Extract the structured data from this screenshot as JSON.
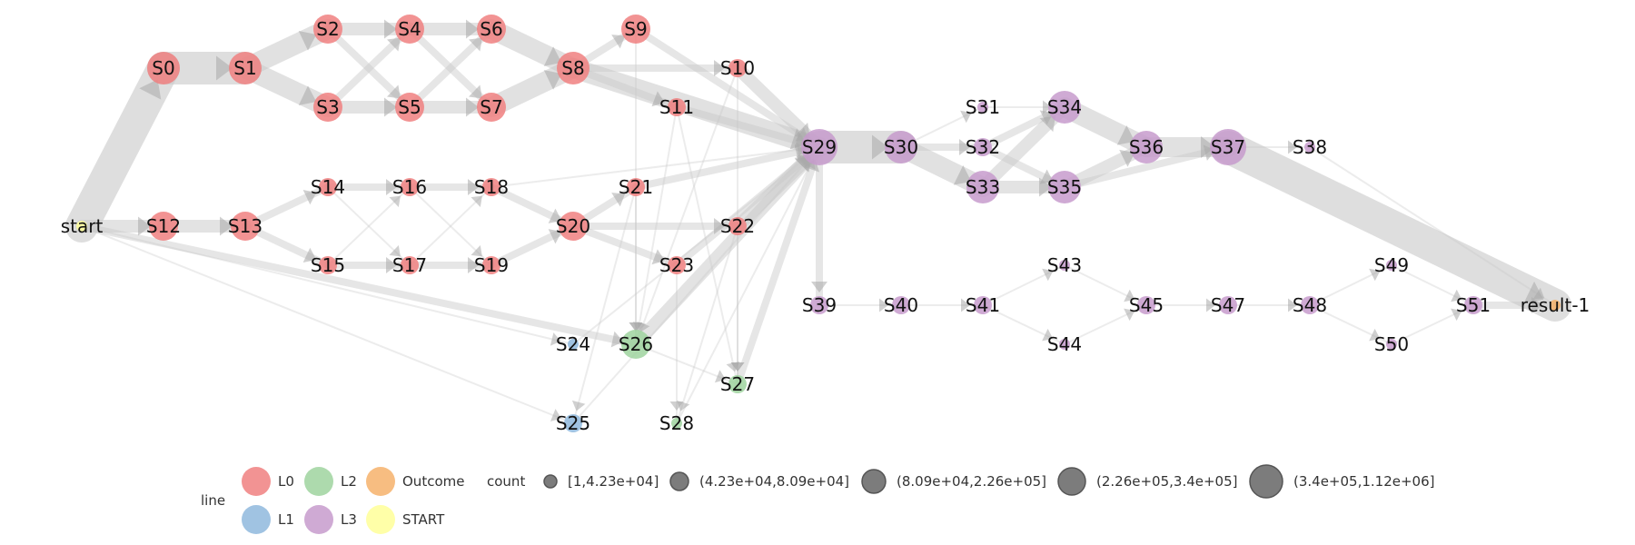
{
  "colors": {
    "L0": "#f08080",
    "L1": "#8fb8dd",
    "L2": "#9fd39f",
    "L3": "#c79bcc",
    "Outcome": "#f6b26b",
    "START": "#ffff99",
    "edge": "#c8c8c8",
    "arrow": "#a9a9a9"
  },
  "nodes": [
    {
      "id": "S0",
      "group": "L0",
      "size": 4
    },
    {
      "id": "S1",
      "group": "L0",
      "size": 4
    },
    {
      "id": "S2",
      "group": "L0",
      "size": 3
    },
    {
      "id": "S3",
      "group": "L0",
      "size": 3
    },
    {
      "id": "S4",
      "group": "L0",
      "size": 3
    },
    {
      "id": "S5",
      "group": "L0",
      "size": 3
    },
    {
      "id": "S6",
      "group": "L0",
      "size": 3
    },
    {
      "id": "S7",
      "group": "L0",
      "size": 3
    },
    {
      "id": "S8",
      "group": "L0",
      "size": 4
    },
    {
      "id": "S9",
      "group": "L0",
      "size": 3
    },
    {
      "id": "S10",
      "group": "L0",
      "size": 2
    },
    {
      "id": "S11",
      "group": "L0",
      "size": 2
    },
    {
      "id": "S12",
      "group": "L0",
      "size": 3
    },
    {
      "id": "S13",
      "group": "L0",
      "size": 3
    },
    {
      "id": "S14",
      "group": "L0",
      "size": 2
    },
    {
      "id": "S15",
      "group": "L0",
      "size": 2
    },
    {
      "id": "S16",
      "group": "L0",
      "size": 2
    },
    {
      "id": "S17",
      "group": "L0",
      "size": 2
    },
    {
      "id": "S18",
      "group": "L0",
      "size": 2
    },
    {
      "id": "S19",
      "group": "L0",
      "size": 2
    },
    {
      "id": "S20",
      "group": "L0",
      "size": 3
    },
    {
      "id": "S21",
      "group": "L0",
      "size": 2
    },
    {
      "id": "S22",
      "group": "L0",
      "size": 2
    },
    {
      "id": "S23",
      "group": "L0",
      "size": 2
    },
    {
      "id": "S24",
      "group": "L1",
      "size": 1
    },
    {
      "id": "S25",
      "group": "L1",
      "size": 2
    },
    {
      "id": "S26",
      "group": "L2",
      "size": 3
    },
    {
      "id": "S27",
      "group": "L2",
      "size": 2
    },
    {
      "id": "S28",
      "group": "L2",
      "size": 1
    },
    {
      "id": "S29",
      "group": "L3",
      "size": 5
    },
    {
      "id": "S30",
      "group": "L3",
      "size": 4
    },
    {
      "id": "S31",
      "group": "L3",
      "size": 1
    },
    {
      "id": "S32",
      "group": "L3",
      "size": 2
    },
    {
      "id": "S33",
      "group": "L3",
      "size": 4
    },
    {
      "id": "S34",
      "group": "L3",
      "size": 4
    },
    {
      "id": "S35",
      "group": "L3",
      "size": 4
    },
    {
      "id": "S36",
      "group": "L3",
      "size": 4
    },
    {
      "id": "S37",
      "group": "L3",
      "size": 5
    },
    {
      "id": "S38",
      "group": "L3",
      "size": 1
    },
    {
      "id": "S39",
      "group": "L3",
      "size": 2
    },
    {
      "id": "S40",
      "group": "L3",
      "size": 2
    },
    {
      "id": "S41",
      "group": "L3",
      "size": 2
    },
    {
      "id": "S43",
      "group": "L3",
      "size": 1
    },
    {
      "id": "S44",
      "group": "L3",
      "size": 1
    },
    {
      "id": "S45",
      "group": "L3",
      "size": 2
    },
    {
      "id": "S47",
      "group": "L3",
      "size": 2
    },
    {
      "id": "S48",
      "group": "L3",
      "size": 2
    },
    {
      "id": "S49",
      "group": "L3",
      "size": 1
    },
    {
      "id": "S50",
      "group": "L3",
      "size": 1
    },
    {
      "id": "S51",
      "group": "L3",
      "size": 2
    },
    {
      "id": "start",
      "group": "START",
      "size": 1
    },
    {
      "id": "result-1",
      "group": "Outcome",
      "size": 1
    }
  ],
  "edges": [
    [
      "start",
      "S0",
      5
    ],
    [
      "S0",
      "S1",
      5
    ],
    [
      "S1",
      "S2",
      4
    ],
    [
      "S1",
      "S3",
      4
    ],
    [
      "S2",
      "S4",
      3
    ],
    [
      "S2",
      "S5",
      2
    ],
    [
      "S3",
      "S4",
      2
    ],
    [
      "S3",
      "S5",
      3
    ],
    [
      "S4",
      "S6",
      3
    ],
    [
      "S4",
      "S7",
      2
    ],
    [
      "S5",
      "S6",
      2
    ],
    [
      "S5",
      "S7",
      3
    ],
    [
      "S6",
      "S8",
      4
    ],
    [
      "S7",
      "S8",
      4
    ],
    [
      "S8",
      "S9",
      2
    ],
    [
      "S8",
      "S10",
      2
    ],
    [
      "S8",
      "S11",
      2
    ],
    [
      "S8",
      "S29",
      4
    ],
    [
      "S9",
      "S29",
      2
    ],
    [
      "S10",
      "S29",
      3
    ],
    [
      "S11",
      "S29",
      2
    ],
    [
      "start",
      "S12",
      3
    ],
    [
      "S12",
      "S13",
      3
    ],
    [
      "S13",
      "S14",
      2
    ],
    [
      "S13",
      "S15",
      2
    ],
    [
      "S14",
      "S16",
      2
    ],
    [
      "S14",
      "S17",
      1
    ],
    [
      "S15",
      "S16",
      1
    ],
    [
      "S15",
      "S17",
      2
    ],
    [
      "S16",
      "S18",
      2
    ],
    [
      "S16",
      "S19",
      1
    ],
    [
      "S17",
      "S18",
      1
    ],
    [
      "S17",
      "S19",
      2
    ],
    [
      "S18",
      "S20",
      2
    ],
    [
      "S19",
      "S20",
      2
    ],
    [
      "S20",
      "S21",
      2
    ],
    [
      "S20",
      "S22",
      2
    ],
    [
      "S20",
      "S23",
      2
    ],
    [
      "S21",
      "S29",
      2
    ],
    [
      "S22",
      "S29",
      3
    ],
    [
      "S23",
      "S29",
      2
    ],
    [
      "S18",
      "S29",
      1
    ],
    [
      "start",
      "S24",
      1
    ],
    [
      "start",
      "S25",
      1
    ],
    [
      "start",
      "S26",
      2
    ],
    [
      "S26",
      "S29",
      3
    ],
    [
      "S26",
      "S27",
      1
    ],
    [
      "S24",
      "S29",
      1
    ],
    [
      "S27",
      "S29",
      2
    ],
    [
      "S28",
      "S29",
      1
    ],
    [
      "S25",
      "S29",
      1
    ],
    [
      "S9",
      "S26",
      1
    ],
    [
      "S10",
      "S27",
      1
    ],
    [
      "S11",
      "S26",
      1
    ],
    [
      "S21",
      "S26",
      1
    ],
    [
      "S22",
      "S27",
      1
    ],
    [
      "S23",
      "S28",
      1
    ],
    [
      "S11",
      "S27",
      1
    ],
    [
      "S10",
      "S26",
      1
    ],
    [
      "S21",
      "S25",
      1
    ],
    [
      "S22",
      "S28",
      1
    ],
    [
      "S29",
      "S30",
      5
    ],
    [
      "S30",
      "S31",
      1
    ],
    [
      "S30",
      "S32",
      2
    ],
    [
      "S30",
      "S33",
      4
    ],
    [
      "S31",
      "S34",
      1
    ],
    [
      "S32",
      "S34",
      2
    ],
    [
      "S32",
      "S35",
      2
    ],
    [
      "S33",
      "S34",
      3
    ],
    [
      "S33",
      "S35",
      3
    ],
    [
      "S34",
      "S36",
      4
    ],
    [
      "S35",
      "S36",
      3
    ],
    [
      "S35",
      "S37",
      2
    ],
    [
      "S36",
      "S37",
      4
    ],
    [
      "S37",
      "S38",
      1
    ],
    [
      "S37",
      "result-1",
      5
    ],
    [
      "S38",
      "result-1",
      1
    ],
    [
      "S29",
      "S39",
      2
    ],
    [
      "S39",
      "S40",
      1
    ],
    [
      "S40",
      "S41",
      1
    ],
    [
      "S41",
      "S43",
      1
    ],
    [
      "S41",
      "S44",
      1
    ],
    [
      "S43",
      "S45",
      1
    ],
    [
      "S44",
      "S45",
      1
    ],
    [
      "S45",
      "S47",
      1
    ],
    [
      "S47",
      "S48",
      1
    ],
    [
      "S48",
      "S49",
      1
    ],
    [
      "S48",
      "S50",
      1
    ],
    [
      "S49",
      "S51",
      1
    ],
    [
      "S50",
      "S51",
      1
    ],
    [
      "S51",
      "result-1",
      2
    ]
  ],
  "legend": {
    "line_title": "line",
    "count_title": "count",
    "groups": [
      {
        "key": "L0",
        "label": "L0"
      },
      {
        "key": "L2",
        "label": "L2"
      },
      {
        "key": "Outcome",
        "label": "Outcome"
      },
      {
        "key": "L1",
        "label": "L1"
      },
      {
        "key": "L3",
        "label": "L3"
      },
      {
        "key": "START",
        "label": "START"
      }
    ],
    "counts": [
      "[1,4.23e+04]",
      "(4.23e+04,8.09e+04]",
      "(8.09e+04,2.26e+05]",
      "(2.26e+05,3.4e+05]",
      "(3.4e+05,1.12e+06]"
    ]
  }
}
